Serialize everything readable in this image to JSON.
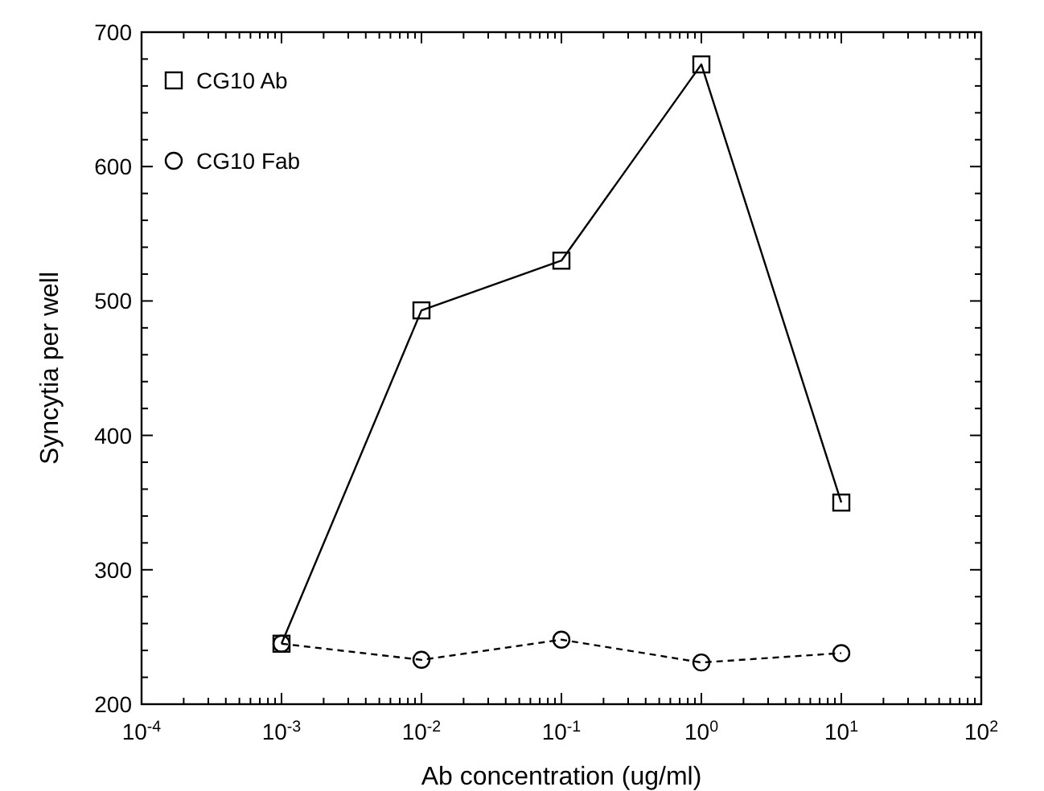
{
  "chart_data": {
    "type": "line",
    "xlabel": "Ab concentration (ug/ml)",
    "ylabel": "Syncytia per well",
    "log": "x",
    "x": [
      0.001,
      0.01,
      0.1,
      1,
      10
    ],
    "xlim": [
      0.0001,
      100
    ],
    "xticks": [
      {
        "value": 0.0001,
        "label": "10$^{-4}$"
      },
      {
        "value": 0.001,
        "label": "10$^{-3}$"
      },
      {
        "value": 0.01,
        "label": "10$^{-2}$"
      },
      {
        "value": 0.1,
        "label": "10$^{-1}$"
      },
      {
        "value": 1,
        "label": "10$^{0}$"
      },
      {
        "value": 10,
        "label": "10$^{1}$"
      },
      {
        "value": 100,
        "label": "10$^{2}$"
      }
    ],
    "ylim": [
      200,
      700
    ],
    "yticks": [
      200,
      300,
      400,
      500,
      600,
      700
    ],
    "grid": false,
    "legend": "top left",
    "series": [
      {
        "name": "CG10 Ab",
        "color": "#000000",
        "marker": "square",
        "line_style": "solid",
        "values": [
          245,
          493,
          530,
          676,
          350
        ]
      },
      {
        "name": "CG10 Fab",
        "color": "#000000",
        "marker": "circle",
        "line_style": "dashed",
        "values": [
          245,
          233,
          248,
          231,
          238
        ]
      }
    ]
  }
}
